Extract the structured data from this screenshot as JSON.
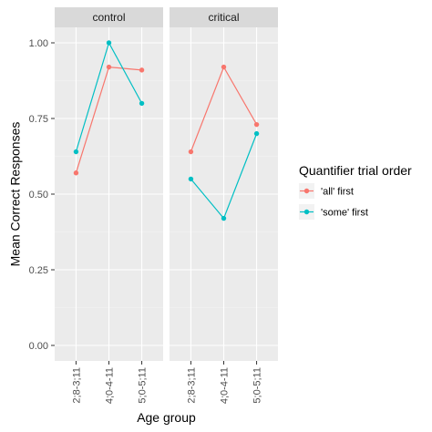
{
  "chart_data": {
    "type": "line",
    "facets": [
      "control",
      "critical"
    ],
    "categories": [
      "2;8-3;11",
      "4;0-4-11",
      "5;0-5;11"
    ],
    "xlabel": "Age group",
    "ylabel": "Mean Correct Responses",
    "ylim": [
      0,
      1
    ],
    "y_ticks": [
      "0.00",
      "0.25",
      "0.50",
      "0.75",
      "1.00"
    ],
    "grid": true,
    "legend": {
      "title": "Quantifier trial order",
      "placement": "right"
    },
    "series": [
      {
        "name": "'all' first",
        "color": "#F8766D",
        "values": {
          "control": [
            0.57,
            0.92,
            0.91
          ],
          "critical": [
            0.64,
            0.92,
            0.73
          ]
        }
      },
      {
        "name": "'some' first",
        "color": "#00BFC4",
        "values": {
          "control": [
            0.64,
            1.0,
            0.8
          ],
          "critical": [
            0.55,
            0.42,
            0.7
          ]
        }
      }
    ]
  }
}
